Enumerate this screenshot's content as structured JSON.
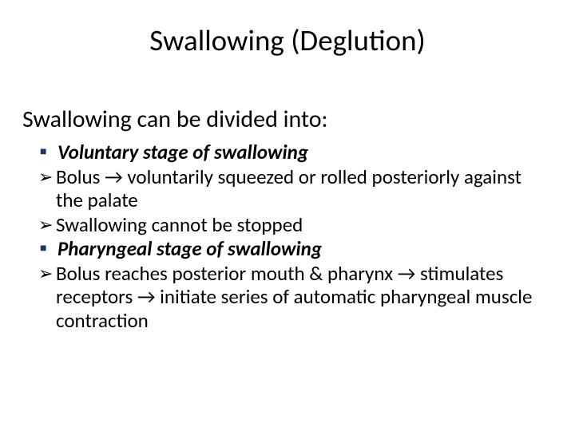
{
  "slide": {
    "title": "Swallowing (Deglution)",
    "subtitle": "Swallowing can be divided into:",
    "items": [
      {
        "bullet": "square",
        "style": "bi",
        "text": "Voluntary stage of swallowing"
      },
      {
        "bullet": "arrow",
        "style": "plain",
        "text": "Bolus →  voluntarily squeezed or rolled posteriorly against the palate"
      },
      {
        "bullet": "arrow",
        "style": "plain",
        "text": "Swallowing cannot be stopped"
      },
      {
        "bullet": "square",
        "style": "bi",
        "text": "Pharyngeal stage of swallowing"
      },
      {
        "bullet": "arrow",
        "style": "plain",
        "text": "Bolus reaches posterior mouth & pharynx → stimulates receptors →  initiate series of automatic pharyngeal muscle contraction"
      }
    ],
    "glyphs": {
      "square": "■",
      "arrow": "➢"
    },
    "colors": {
      "background": "#ffffff",
      "text": "#000000",
      "square_bullet": "#17375e"
    },
    "fonts": {
      "title_size_pt": 37,
      "subtitle_size_pt": 30,
      "body_size_pt": 25
    }
  }
}
